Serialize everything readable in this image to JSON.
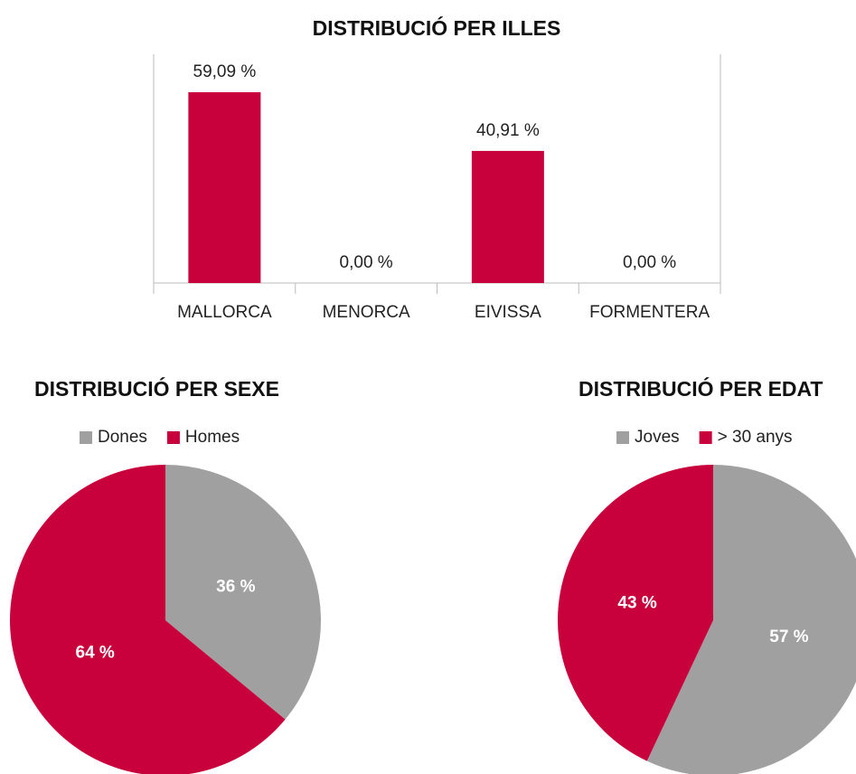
{
  "chart_data": [
    {
      "type": "bar",
      "title": "DISTRIBUCIÓ PER ILLES",
      "categories": [
        "MALLORCA",
        "MENORCA",
        "EIVISSA",
        "FORMENTERA"
      ],
      "values": [
        59.09,
        0,
        40.91,
        0
      ],
      "value_labels": [
        "59,09 %",
        "0,00 %",
        "40,91 %",
        "0,00 %"
      ],
      "color": "#c8003c"
    },
    {
      "type": "pie",
      "title": "DISTRIBUCIÓ PER SEXE",
      "categories": [
        "Dones",
        "Homes"
      ],
      "values": [
        36,
        64
      ],
      "value_labels": [
        "36 %",
        "64 %"
      ],
      "colors": [
        "#a0a0a0",
        "#c8003c"
      ]
    },
    {
      "type": "pie",
      "title": "DISTRIBUCIÓ PER EDAT",
      "categories": [
        "Joves",
        "> 30 anys"
      ],
      "values": [
        57,
        43
      ],
      "value_labels": [
        "57 %",
        "43 %"
      ],
      "colors": [
        "#a0a0a0",
        "#c8003c"
      ]
    }
  ]
}
